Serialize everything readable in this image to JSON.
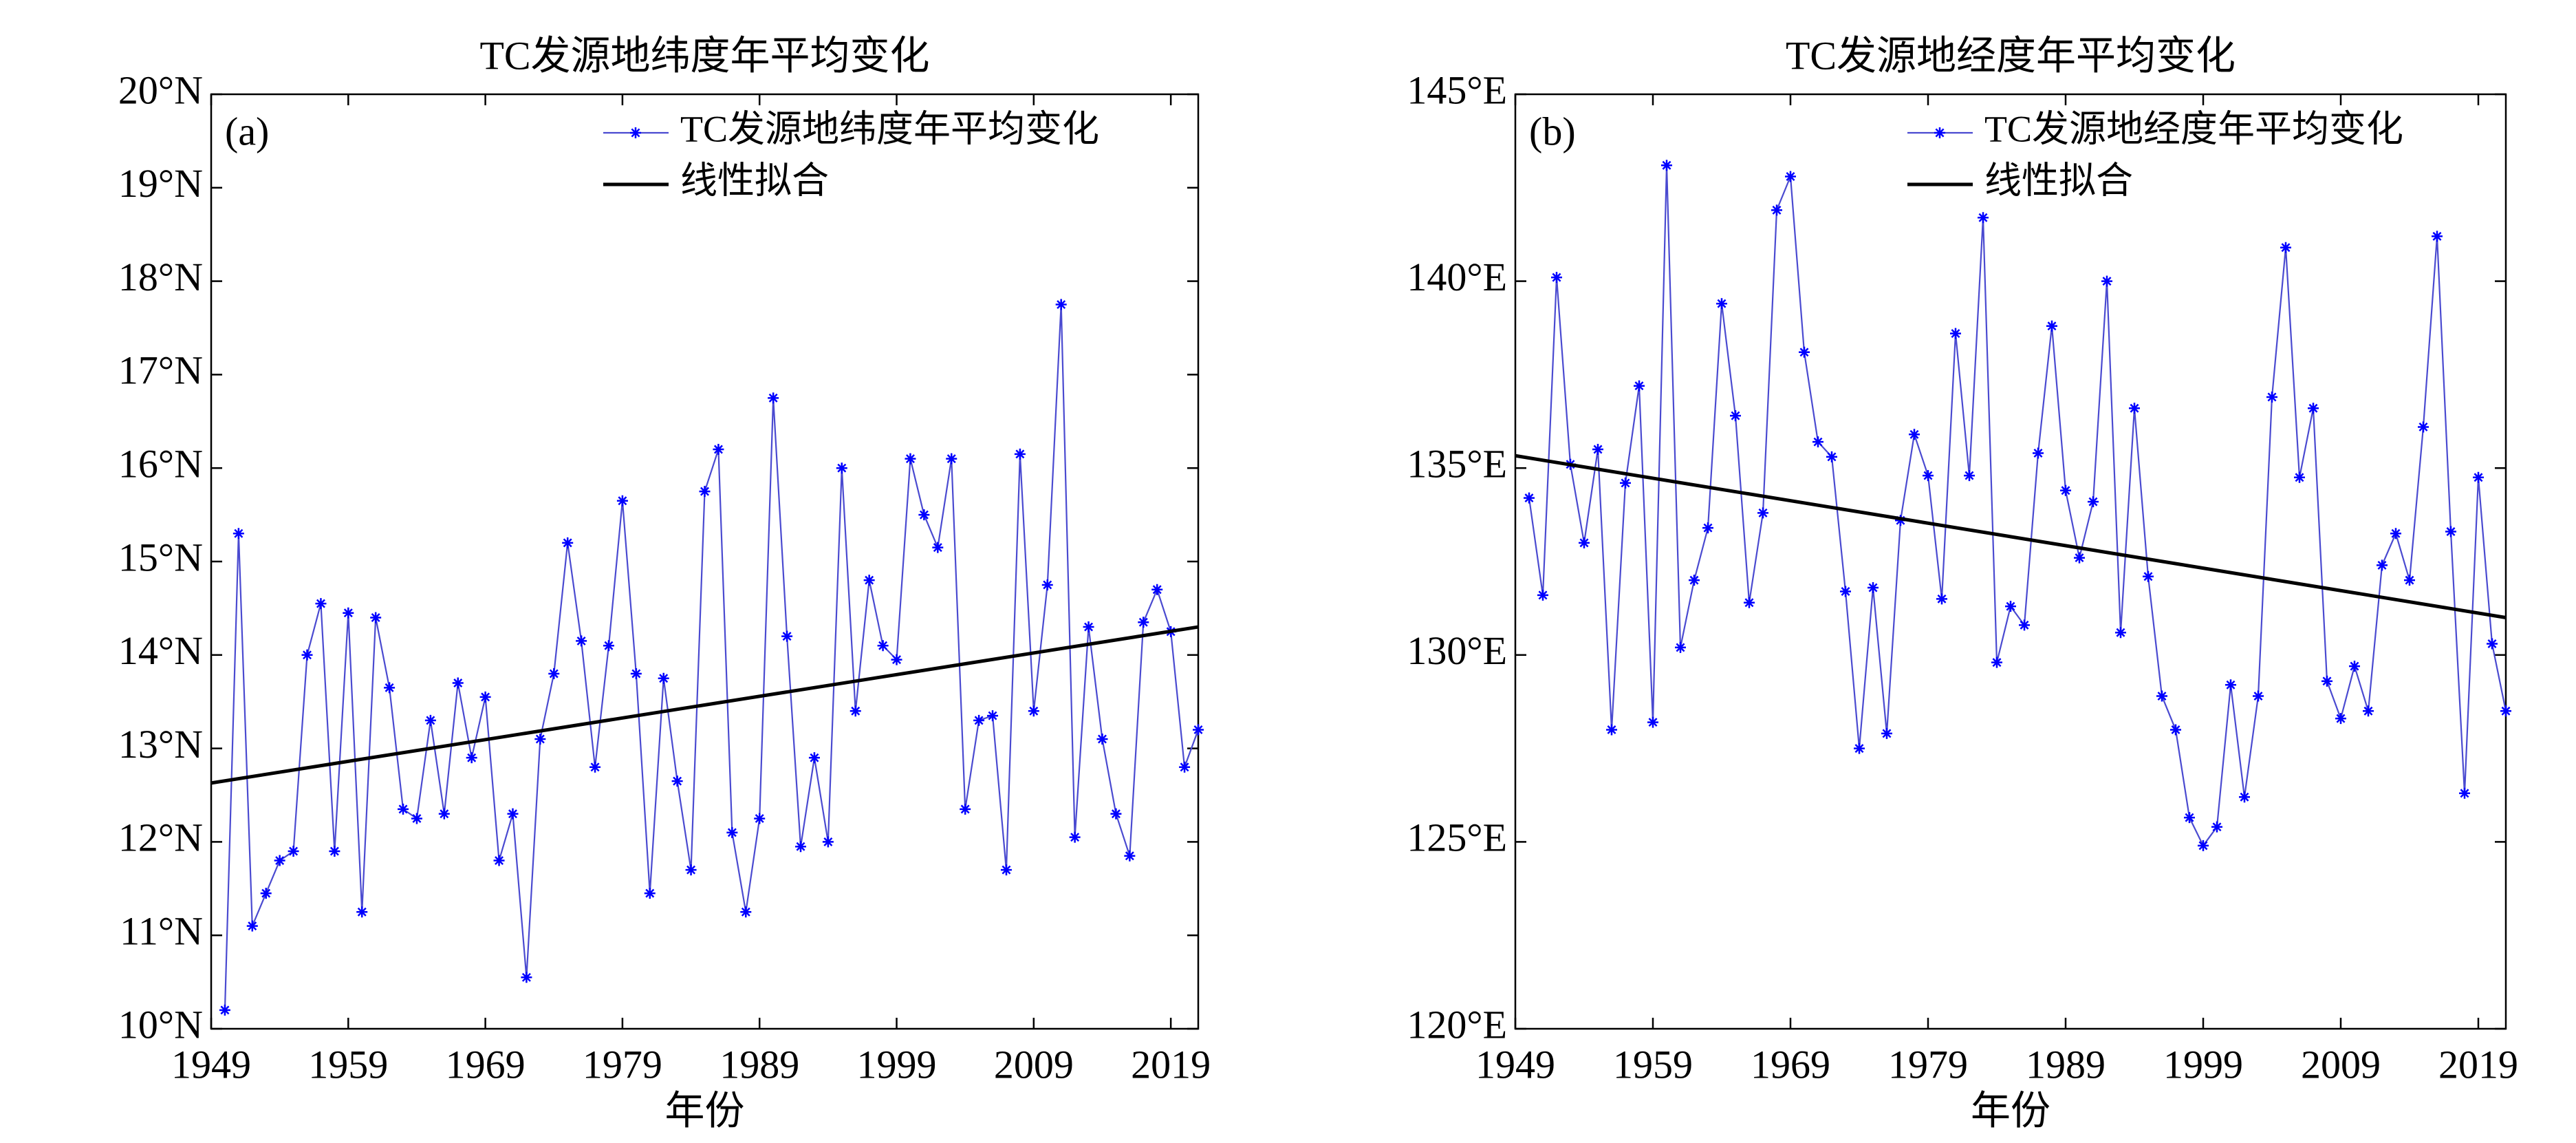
{
  "chart_data": [
    {
      "type": "line",
      "title": "TC发源地纬度年平均变化",
      "panel_label": "(a)",
      "xlabel": "年份",
      "x": [
        1950,
        1951,
        1952,
        1953,
        1954,
        1955,
        1956,
        1957,
        1958,
        1959,
        1960,
        1961,
        1962,
        1963,
        1964,
        1965,
        1966,
        1967,
        1968,
        1969,
        1970,
        1971,
        1972,
        1973,
        1974,
        1975,
        1976,
        1977,
        1978,
        1979,
        1980,
        1981,
        1982,
        1983,
        1984,
        1985,
        1986,
        1987,
        1988,
        1989,
        1990,
        1991,
        1992,
        1993,
        1994,
        1995,
        1996,
        1997,
        1998,
        1999,
        2000,
        2001,
        2002,
        2003,
        2004,
        2005,
        2006,
        2007,
        2008,
        2009,
        2010,
        2011,
        2012,
        2013,
        2014,
        2015,
        2016,
        2017,
        2018,
        2019,
        2020,
        2021
      ],
      "series": [
        {
          "name": "TC发源地纬度年平均变化",
          "color": "#4a4ad0",
          "marker_color": "#0000ff",
          "marker": "*",
          "values": [
            10.2,
            15.3,
            11.1,
            11.45,
            11.8,
            11.9,
            14.0,
            14.55,
            11.9,
            14.45,
            11.25,
            14.4,
            13.65,
            12.35,
            12.25,
            13.3,
            12.3,
            13.7,
            12.9,
            13.55,
            11.8,
            12.3,
            10.55,
            13.1,
            13.8,
            15.2,
            14.15,
            12.8,
            14.1,
            15.65,
            13.8,
            11.45,
            13.75,
            12.65,
            11.7,
            15.75,
            16.2,
            12.1,
            11.25,
            12.25,
            16.75,
            14.2,
            11.95,
            12.9,
            12.0,
            16.0,
            13.4,
            14.8,
            14.1,
            13.95,
            16.1,
            15.5,
            15.15,
            16.1,
            12.35,
            13.3,
            13.35,
            11.7,
            16.15,
            13.4,
            14.75,
            17.75,
            12.05,
            14.3,
            13.1,
            12.3,
            11.85,
            14.35,
            14.7,
            14.25,
            12.8,
            13.2
          ]
        },
        {
          "name": "线性拟合",
          "color": "#000000",
          "x": [
            1949,
            2021
          ],
          "values": [
            12.63,
            14.3
          ]
        }
      ],
      "xlim": [
        1949,
        2021
      ],
      "xticks": [
        1949,
        1959,
        1969,
        1979,
        1989,
        1999,
        2009,
        2019
      ],
      "ylim": [
        10,
        20
      ],
      "yticks": [
        {
          "value": 10,
          "label": "10°N"
        },
        {
          "value": 11,
          "label": "11°N"
        },
        {
          "value": 12,
          "label": "12°N"
        },
        {
          "value": 13,
          "label": "13°N"
        },
        {
          "value": 14,
          "label": "14°N"
        },
        {
          "value": 15,
          "label": "15°N"
        },
        {
          "value": 16,
          "label": "16°N"
        },
        {
          "value": 17,
          "label": "17°N"
        },
        {
          "value": 18,
          "label": "18°N"
        },
        {
          "value": 19,
          "label": "19°N"
        },
        {
          "value": 20,
          "label": "20°N"
        }
      ],
      "grid": false,
      "legend": "upper right"
    },
    {
      "type": "line",
      "title": "TC发源地经度年平均变化",
      "panel_label": "(b)",
      "xlabel": "年份",
      "x": [
        1950,
        1951,
        1952,
        1953,
        1954,
        1955,
        1956,
        1957,
        1958,
        1959,
        1960,
        1961,
        1962,
        1963,
        1964,
        1965,
        1966,
        1967,
        1968,
        1969,
        1970,
        1971,
        1972,
        1973,
        1974,
        1975,
        1976,
        1977,
        1978,
        1979,
        1980,
        1981,
        1982,
        1983,
        1984,
        1985,
        1986,
        1987,
        1988,
        1989,
        1990,
        1991,
        1992,
        1993,
        1994,
        1995,
        1996,
        1997,
        1998,
        1999,
        2000,
        2001,
        2002,
        2003,
        2004,
        2005,
        2006,
        2007,
        2008,
        2009,
        2010,
        2011,
        2012,
        2013,
        2014,
        2015,
        2016,
        2017,
        2018,
        2019,
        2020,
        2021
      ],
      "series": [
        {
          "name": "TC发源地经度年平均变化",
          "color": "#4a4ad0",
          "marker_color": "#0000ff",
          "marker": "*",
          "values": [
            134.2,
            131.6,
            140.1,
            135.1,
            133.0,
            135.5,
            128.0,
            134.6,
            137.2,
            128.2,
            143.1,
            130.2,
            132.0,
            133.4,
            139.4,
            136.4,
            131.4,
            133.8,
            141.9,
            142.8,
            138.1,
            135.7,
            135.3,
            131.7,
            127.5,
            131.8,
            127.9,
            133.6,
            135.9,
            134.8,
            131.5,
            138.6,
            134.8,
            141.7,
            129.8,
            131.3,
            130.8,
            135.4,
            138.8,
            134.4,
            132.6,
            134.1,
            140.0,
            130.6,
            136.6,
            132.1,
            128.9,
            128.0,
            125.65,
            124.9,
            125.4,
            129.2,
            126.2,
            128.9,
            136.9,
            140.9,
            134.75,
            136.6,
            129.3,
            128.3,
            129.7,
            128.5,
            132.4,
            133.25,
            132.0,
            136.1,
            141.2,
            133.3,
            126.3,
            134.75,
            130.3,
            128.5
          ]
        },
        {
          "name": "线性拟合",
          "color": "#000000",
          "x": [
            1949,
            2021
          ],
          "values": [
            135.33,
            131.0
          ]
        }
      ],
      "xlim": [
        1949,
        2021
      ],
      "xticks": [
        1949,
        1959,
        1969,
        1979,
        1989,
        1999,
        2009,
        2019
      ],
      "ylim": [
        120,
        145
      ],
      "yticks": [
        {
          "value": 120,
          "label": "120°E"
        },
        {
          "value": 125,
          "label": "125°E"
        },
        {
          "value": 130,
          "label": "130°E"
        },
        {
          "value": 135,
          "label": "135°E"
        },
        {
          "value": 140,
          "label": "140°E"
        },
        {
          "value": 145,
          "label": "145°E"
        }
      ],
      "grid": false,
      "legend": "upper right"
    }
  ]
}
